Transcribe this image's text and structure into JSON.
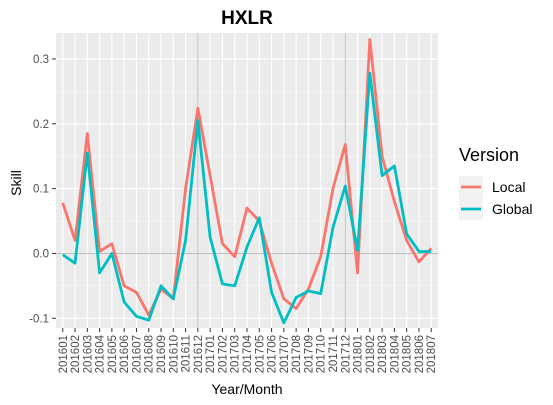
{
  "chart_data": {
    "type": "line",
    "title": "HXLR",
    "xlabel": "Year/Month",
    "ylabel": "Skill",
    "categories": [
      "201601",
      "201602",
      "201603",
      "201604",
      "201605",
      "201606",
      "201607",
      "201608",
      "201609",
      "201610",
      "201611",
      "201612",
      "201701",
      "201702",
      "201703",
      "201704",
      "201705",
      "201706",
      "201707",
      "201708",
      "201709",
      "201710",
      "201711",
      "201712",
      "201801",
      "201802",
      "201803",
      "201804",
      "201805",
      "201806",
      "201807"
    ],
    "ylim": [
      -0.115,
      0.34
    ],
    "yticks": [
      -0.1,
      0.0,
      0.1,
      0.2,
      0.3
    ],
    "ytick_labels": [
      "-0.1",
      "0.0",
      "0.1",
      "0.2",
      "0.3"
    ],
    "reference_lines": {
      "y": [
        0.0
      ],
      "x": [
        "201612",
        "201712"
      ]
    },
    "grid": true,
    "legend": {
      "title": "Version",
      "position": "right"
    },
    "series": [
      {
        "name": "Local",
        "color": "#F8766D",
        "values": [
          0.078,
          0.02,
          0.185,
          0.003,
          0.015,
          -0.05,
          -0.06,
          -0.095,
          -0.055,
          -0.07,
          0.1,
          0.224,
          0.12,
          0.015,
          -0.005,
          0.07,
          0.05,
          -0.015,
          -0.07,
          -0.085,
          -0.055,
          -0.005,
          0.1,
          0.168,
          -0.03,
          0.33,
          0.15,
          0.08,
          0.02,
          -0.013,
          0.008
        ]
      },
      {
        "name": "Global",
        "color": "#00BFC4",
        "values": [
          -0.002,
          -0.015,
          0.155,
          -0.03,
          0.0,
          -0.075,
          -0.097,
          -0.103,
          -0.05,
          -0.07,
          0.02,
          0.205,
          0.025,
          -0.047,
          -0.05,
          0.01,
          0.055,
          -0.06,
          -0.107,
          -0.068,
          -0.058,
          -0.062,
          0.04,
          0.104,
          0.005,
          0.278,
          0.12,
          0.135,
          0.03,
          0.003,
          0.003
        ]
      }
    ]
  }
}
